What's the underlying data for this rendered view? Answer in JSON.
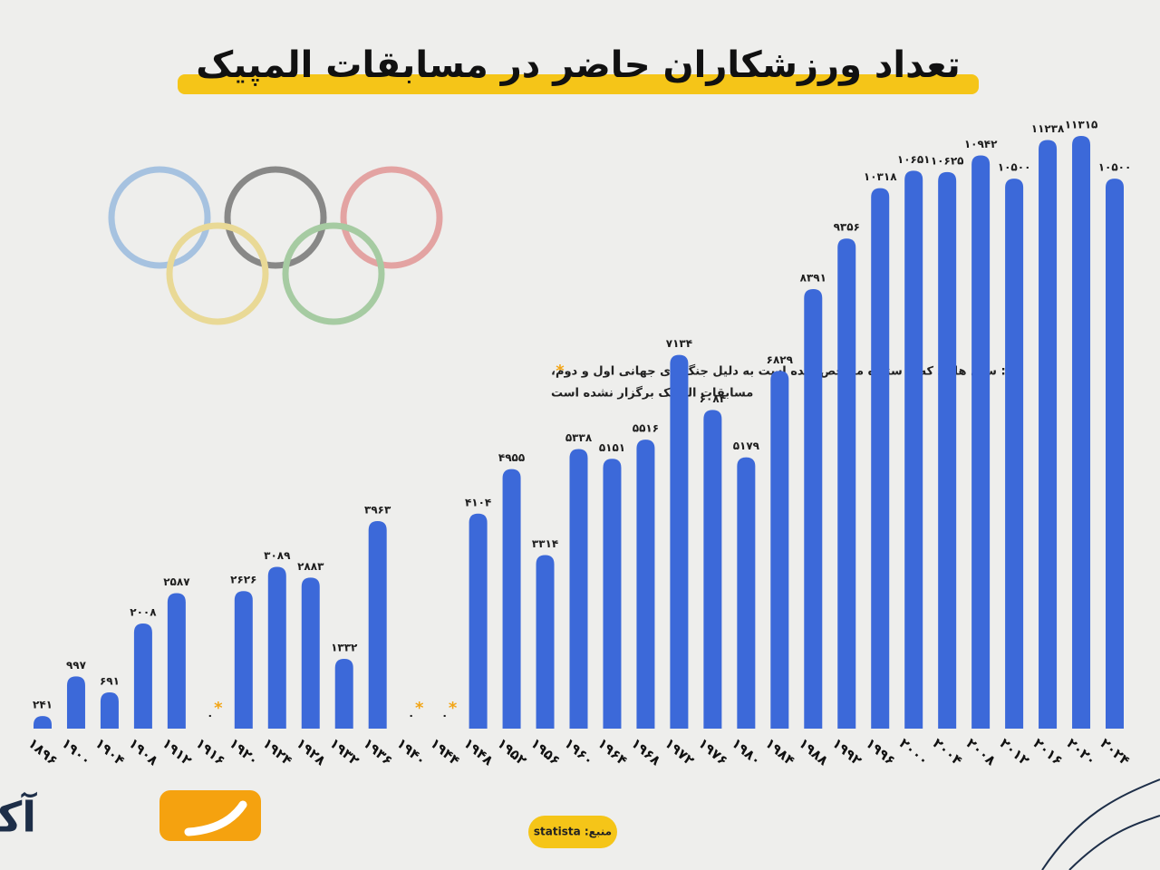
{
  "chart_data": {
    "type": "bar",
    "title": "تعداد ورزشکاران حاضر در مسابقات المپیک",
    "categories": [
      "۱۸۹۶",
      "۱۹۰۰",
      "۱۹۰۴",
      "۱۹۰۸",
      "۱۹۱۲",
      "۱۹۱۶",
      "۱۹۲۰",
      "۱۹۲۴",
      "۱۹۲۸",
      "۱۹۳۲",
      "۱۹۳۶",
      "۱۹۴۰",
      "۱۹۴۴",
      "۱۹۴۸",
      "۱۹۵۲",
      "۱۹۵۶",
      "۱۹۶۰",
      "۱۹۶۴",
      "۱۹۶۸",
      "۱۹۷۲",
      "۱۹۷۶",
      "۱۹۸۰",
      "۱۹۸۴",
      "۱۹۸۸",
      "۱۹۹۲",
      "۱۹۹۶",
      "۲۰۰۰",
      "۲۰۰۴",
      "۲۰۰۸",
      "۲۰۱۲",
      "۲۰۱۶",
      "۲۰۲۰",
      "۲۰۲۴"
    ],
    "values": [
      241,
      997,
      691,
      2008,
      2587,
      0,
      2626,
      3089,
      2883,
      1332,
      3963,
      0,
      0,
      4104,
      4955,
      3314,
      5338,
      5151,
      5516,
      7134,
      6084,
      5179,
      6829,
      8391,
      9356,
      10318,
      10651,
      10625,
      10942,
      10500,
      11238,
      11315,
      10500
    ],
    "value_labels": [
      "۲۴۱",
      "۹۹۷",
      "۶۹۱",
      "۲۰۰۸",
      "۲۵۸۷",
      "۰",
      "۲۶۲۶",
      "۳۰۸۹",
      "۲۸۸۳",
      "۱۳۳۲",
      "۳۹۶۳",
      "۰",
      "۰",
      "۴۱۰۴",
      "۴۹۵۵",
      "۳۳۱۴",
      "۵۳۳۸",
      "۵۱۵۱",
      "۵۵۱۶",
      "۷۱۳۴",
      "۶۰۸۴",
      "۵۱۷۹",
      "۶۸۲۹",
      "۸۳۹۱",
      "۹۳۵۶",
      "۱۰۳۱۸",
      "۱۰۶۵۱",
      "۱۰۶۲۵",
      "۱۰۹۴۲",
      "۱۰۵۰۰",
      "۱۱۲۳۸",
      "۱۱۳۱۵",
      "۱۰۵۰۰"
    ],
    "color": "#3c69d9",
    "note": {
      "symbol": "*",
      "lines": [
        ": سال هایی که با ستاره مشخص شده است به دلیل جنگ‌های جهانی اول و دوم،",
        "مسابقات المپیک برگزار نشده است"
      ]
    }
  },
  "source": "منبع: statista",
  "logo": "آکافمک"
}
